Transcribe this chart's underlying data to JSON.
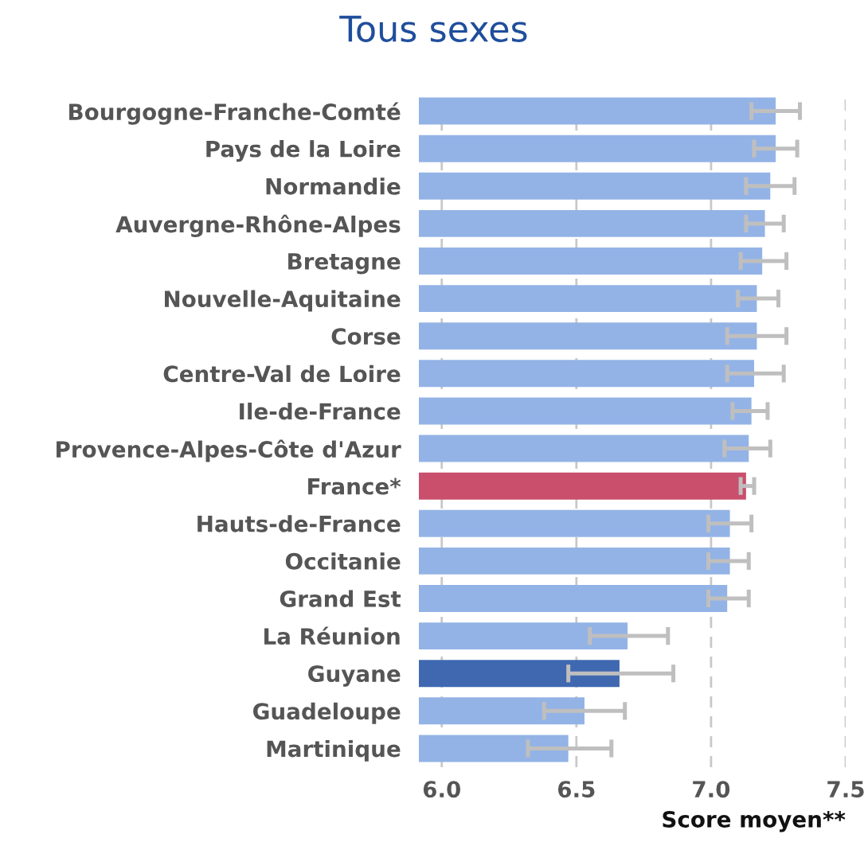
{
  "chart_data": {
    "type": "bar",
    "orientation": "horizontal",
    "title": "Tous sexes",
    "xlabel": "Score moyen**",
    "categories": [
      "Bourgogne-Franche-Comté",
      "Pays de la Loire",
      "Normandie",
      "Auvergne-Rhône-Alpes",
      "Bretagne",
      "Nouvelle-Aquitaine",
      "Corse",
      "Centre-Val de Loire",
      "Ile-de-France",
      "Provence-Alpes-Côte d'Azur",
      "France*",
      "Hauts-de-France",
      "Occitanie",
      "Grand Est",
      "La Réunion",
      "Guyane",
      "Guadeloupe",
      "Martinique"
    ],
    "values": [
      7.24,
      7.24,
      7.22,
      7.2,
      7.19,
      7.17,
      7.17,
      7.16,
      7.15,
      7.14,
      7.13,
      7.07,
      7.07,
      7.06,
      6.69,
      6.66,
      6.53,
      6.47
    ],
    "errors": [
      [
        7.15,
        7.33
      ],
      [
        7.16,
        7.32
      ],
      [
        7.13,
        7.31
      ],
      [
        7.13,
        7.27
      ],
      [
        7.11,
        7.28
      ],
      [
        7.1,
        7.25
      ],
      [
        7.06,
        7.28
      ],
      [
        7.06,
        7.27
      ],
      [
        7.08,
        7.21
      ],
      [
        7.05,
        7.22
      ],
      [
        7.11,
        7.16
      ],
      [
        6.99,
        7.15
      ],
      [
        6.99,
        7.14
      ],
      [
        6.99,
        7.14
      ],
      [
        6.55,
        6.84
      ],
      [
        6.47,
        6.86
      ],
      [
        6.38,
        6.68
      ],
      [
        6.32,
        6.63
      ]
    ],
    "colors": [
      "#93b3e6",
      "#93b3e6",
      "#93b3e6",
      "#93b3e6",
      "#93b3e6",
      "#93b3e6",
      "#93b3e6",
      "#93b3e6",
      "#93b3e6",
      "#93b3e6",
      "#c94f6d",
      "#93b3e6",
      "#93b3e6",
      "#93b3e6",
      "#93b3e6",
      "#3f68b0",
      "#93b3e6",
      "#93b3e6"
    ],
    "xlim": [
      5.915,
      7.5
    ],
    "xticks": [
      {
        "value": 6.0,
        "label": "6.0"
      },
      {
        "value": 6.5,
        "label": "6.5"
      },
      {
        "value": 7.0,
        "label": "7.0"
      },
      {
        "value": 7.5,
        "label": "7.5"
      }
    ],
    "grid": "x"
  }
}
